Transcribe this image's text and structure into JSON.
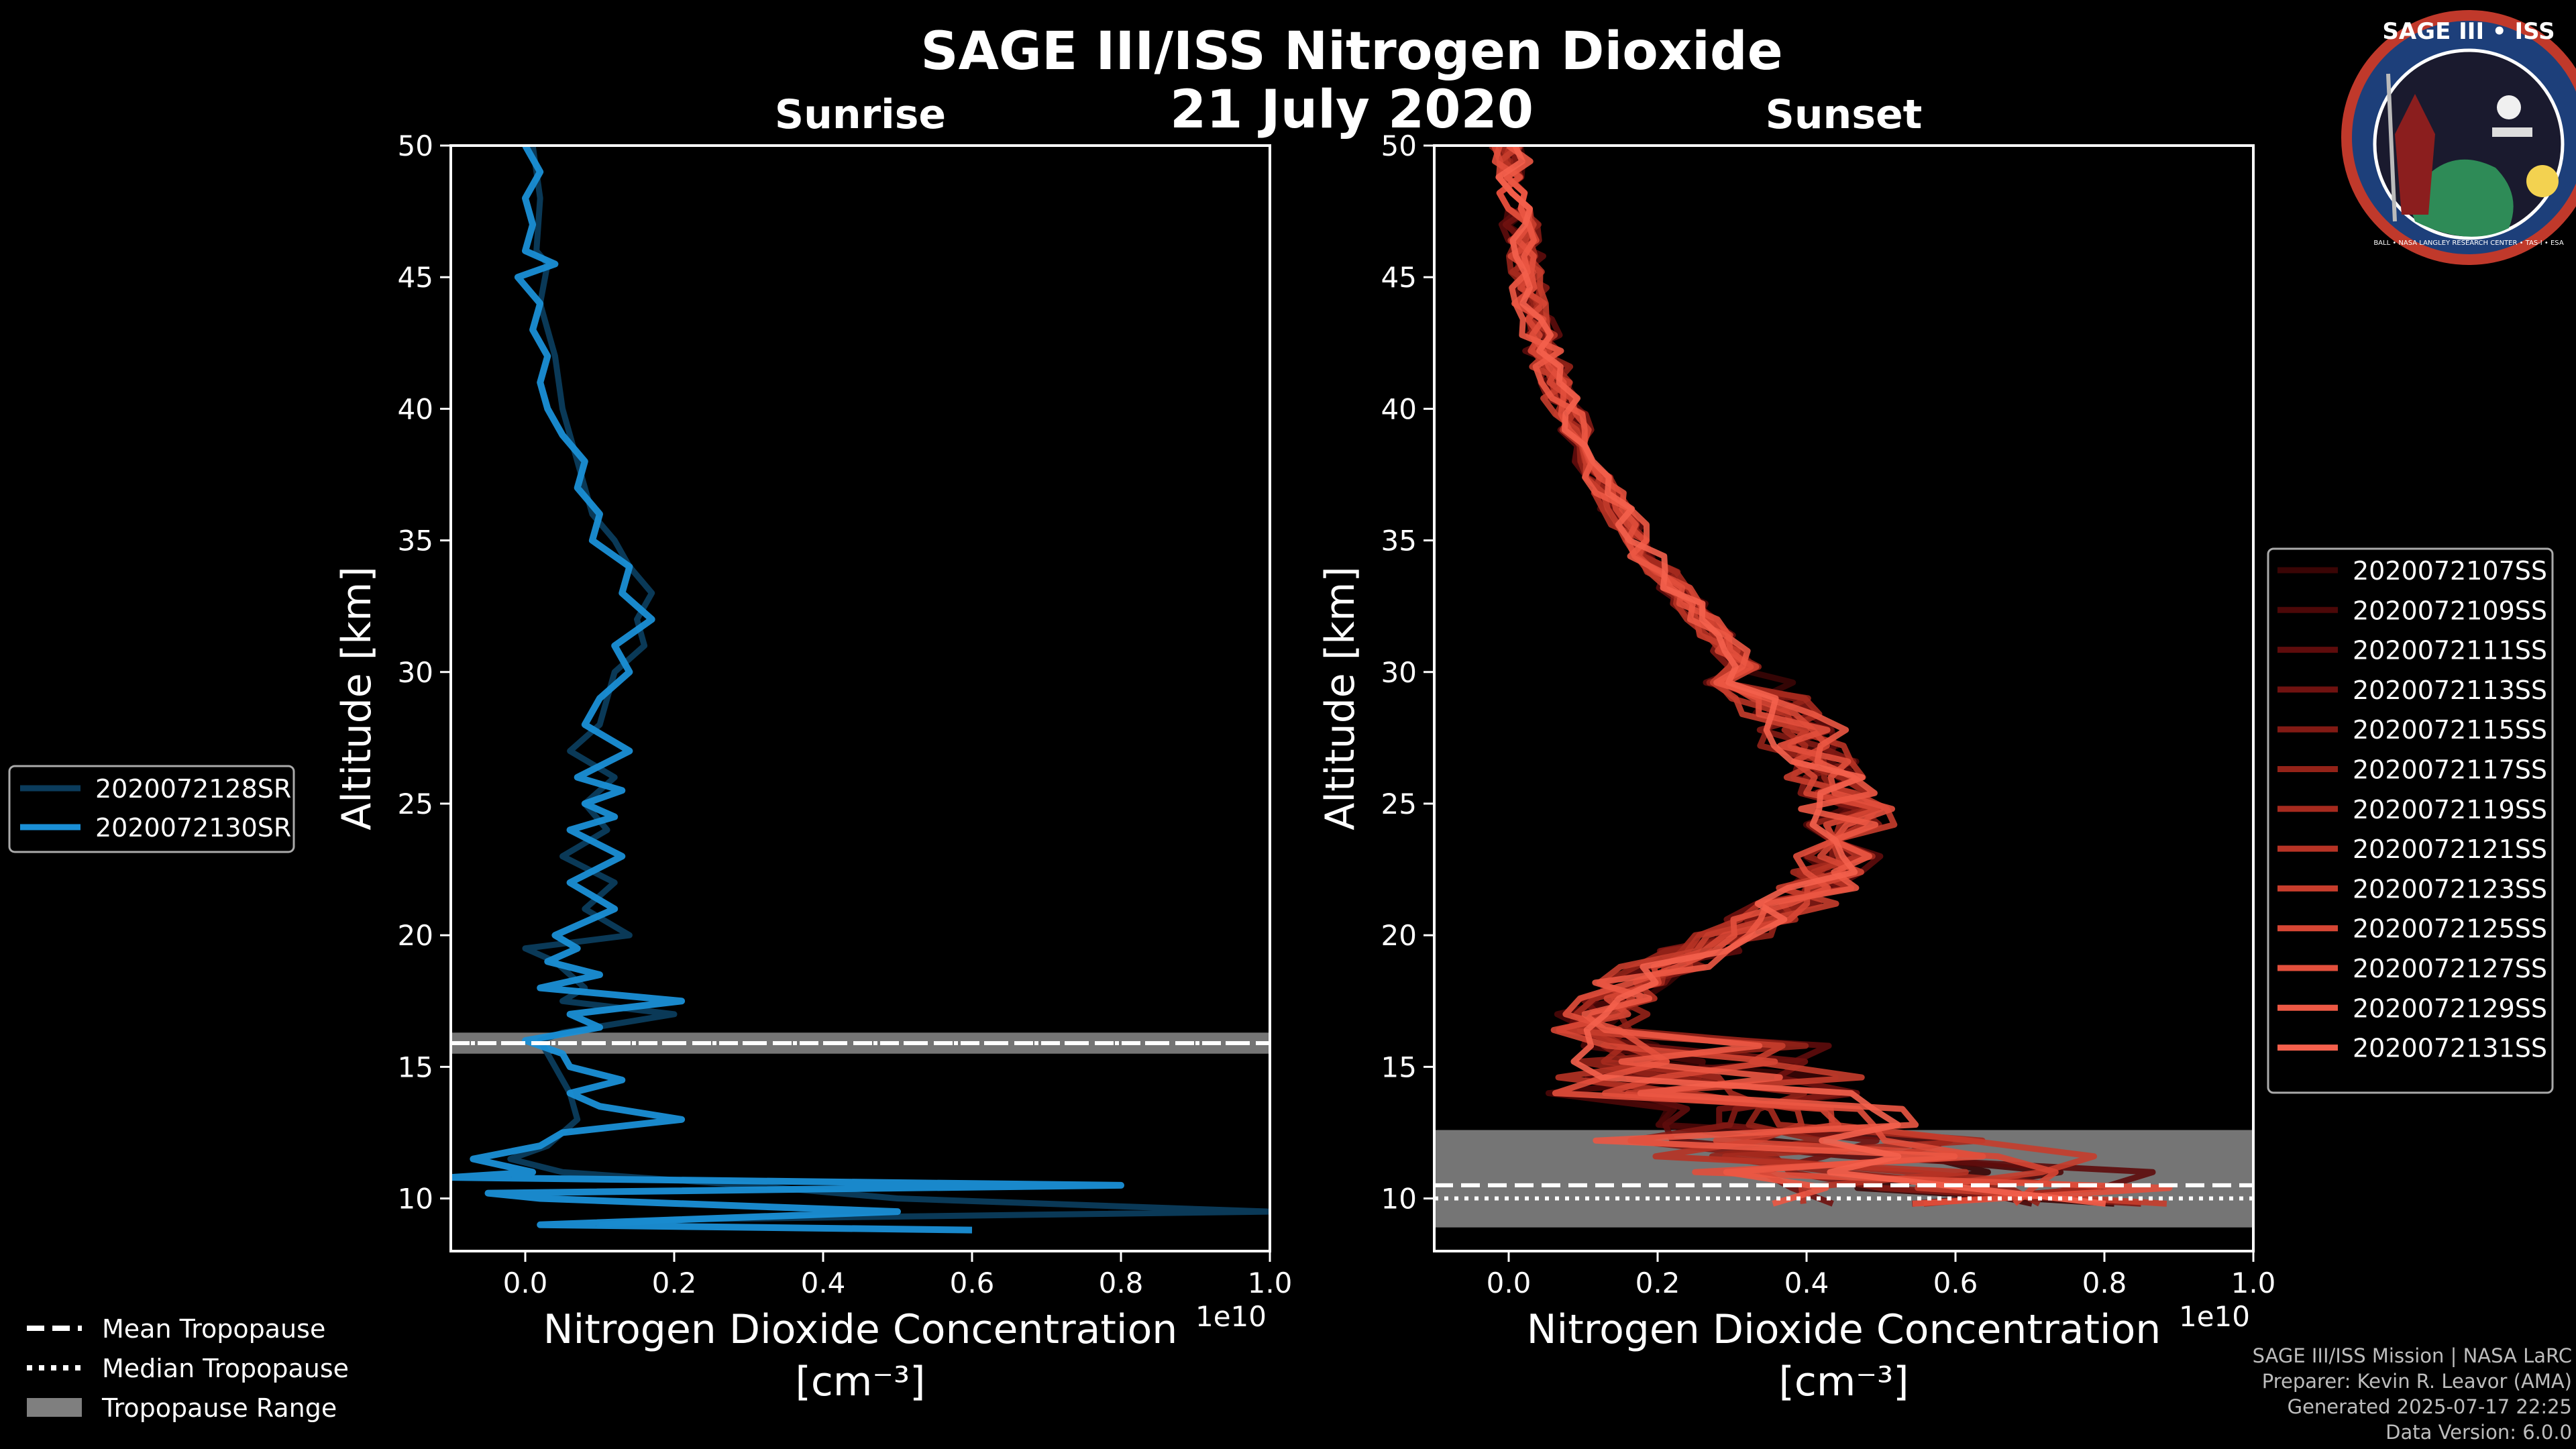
{
  "figure": {
    "title": "SAGE III/ISS Nitrogen Dioxide",
    "date": "21 July 2020",
    "badge_text": "SAGE III • ISS",
    "badge_ring_text": "BALL • NASA LANGLEY RESEARCH CENTER • TAS-I • ESA",
    "footer": [
      "SAGE III/ISS Mission | NASA LaRC",
      "Preparer: Kevin R. Leavor (AMA)",
      "Generated 2025-07-17 22:25",
      "Data Version: 6.0.0"
    ],
    "tropopause_legend": [
      {
        "label": "Mean Tropopause",
        "style": "dashed",
        "color": "#ffffff"
      },
      {
        "label": "Median Tropopause",
        "style": "dotted",
        "color": "#ffffff"
      },
      {
        "label": "Tropopause Range",
        "style": "patch",
        "color": "#7f7f7f"
      }
    ]
  },
  "chart_data": [
    {
      "type": "line",
      "title": "Sunrise",
      "xlabel": "Nitrogen Dioxide Concentration",
      "xunit": "[cm⁻³]",
      "ylabel": "Altitude [km]",
      "xlim": [
        -0.1,
        1.0
      ],
      "ylim": [
        8,
        50
      ],
      "x_scale_label": "1e10",
      "x_scale": 10000000000.0,
      "xticks": [
        0.0,
        0.2,
        0.4,
        0.6,
        0.8,
        1.0
      ],
      "xtick_labels": [
        "0.0",
        "0.2",
        "0.4",
        "0.6",
        "0.8",
        "1.0"
      ],
      "yticks": [
        10,
        15,
        20,
        25,
        30,
        35,
        40,
        45,
        50
      ],
      "ytick_labels": [
        "10",
        "15",
        "20",
        "25",
        "30",
        "35",
        "40",
        "45",
        "50"
      ],
      "tropopause": {
        "mean": 15.9,
        "median": 15.9,
        "range": [
          15.5,
          16.3
        ]
      },
      "series": [
        {
          "name": "2020072128SR",
          "color": "#0b3c5c",
          "altitude": [
            50,
            48,
            46,
            45.5,
            44,
            42,
            40,
            38,
            36,
            35,
            34,
            33,
            32,
            31,
            30,
            28,
            27,
            26,
            25,
            24,
            23,
            22,
            21,
            20,
            19.5,
            19,
            18,
            17.5,
            17,
            16.3,
            16,
            15,
            14,
            13,
            12,
            11.5,
            11,
            10.5,
            10,
            9.8,
            9.5,
            9.2,
            9
          ],
          "values": [
            0.01,
            0.02,
            0.015,
            0.03,
            0.02,
            0.04,
            0.05,
            0.07,
            0.09,
            0.12,
            0.14,
            0.17,
            0.15,
            0.16,
            0.12,
            0.1,
            0.06,
            0.12,
            0.08,
            0.11,
            0.05,
            0.12,
            0.08,
            0.14,
            0.0,
            0.04,
            0.08,
            0.05,
            0.2,
            0.05,
            0.02,
            0.04,
            0.06,
            0.07,
            0.03,
            -0.02,
            0.05,
            0.3,
            0.5,
            0.7,
            1.0,
            0.2,
            0.1
          ]
        },
        {
          "name": "2020072130SR",
          "color": "#1a8fd6",
          "altitude": [
            50,
            49,
            48,
            47,
            46,
            45.5,
            45,
            44,
            43,
            42,
            41,
            40,
            39,
            38,
            37,
            36,
            35,
            34,
            33,
            32,
            31,
            30,
            29,
            28,
            27,
            26,
            25.5,
            25,
            24.5,
            24,
            23,
            22,
            21,
            20,
            19.5,
            19,
            18.5,
            18,
            17.5,
            17,
            16.5,
            16,
            15.5,
            15,
            14.5,
            14,
            13.5,
            13,
            12.5,
            12,
            11.5,
            11,
            10.8,
            10.5,
            10.2,
            10,
            9.5,
            9,
            8.8
          ],
          "values": [
            0.0,
            0.02,
            0.0,
            0.01,
            0.0,
            0.04,
            -0.01,
            0.02,
            0.01,
            0.03,
            0.02,
            0.03,
            0.05,
            0.08,
            0.07,
            0.1,
            0.09,
            0.14,
            0.13,
            0.17,
            0.12,
            0.14,
            0.1,
            0.08,
            0.14,
            0.07,
            0.13,
            0.08,
            0.12,
            0.06,
            0.13,
            0.06,
            0.12,
            0.04,
            0.07,
            0.03,
            0.1,
            0.02,
            0.21,
            0.06,
            0.1,
            0.0,
            0.05,
            0.06,
            0.13,
            0.06,
            0.1,
            0.21,
            0.05,
            0.02,
            -0.07,
            0.01,
            -0.1,
            0.8,
            -0.05,
            0.02,
            0.5,
            0.02,
            0.6
          ]
        }
      ]
    },
    {
      "type": "line",
      "title": "Sunset",
      "xlabel": "Nitrogen Dioxide Concentration",
      "xunit": "[cm⁻³]",
      "ylabel": "Altitude [km]",
      "xlim": [
        -0.1,
        1.0
      ],
      "ylim": [
        8,
        50
      ],
      "x_scale_label": "1e10",
      "x_scale": 10000000000.0,
      "xticks": [
        0.0,
        0.2,
        0.4,
        0.6,
        0.8,
        1.0
      ],
      "xtick_labels": [
        "0.0",
        "0.2",
        "0.4",
        "0.6",
        "0.8",
        "1.0"
      ],
      "yticks": [
        10,
        15,
        20,
        25,
        30,
        35,
        40,
        45,
        50
      ],
      "ytick_labels": [
        "10",
        "15",
        "20",
        "25",
        "30",
        "35",
        "40",
        "45",
        "50"
      ],
      "tropopause": {
        "mean": 10.5,
        "median": 10.0,
        "range": [
          8.9,
          12.6
        ]
      },
      "base_profile": {
        "altitude": [
          50,
          48,
          46,
          44,
          42,
          40,
          38,
          36,
          34,
          32,
          30,
          28,
          26,
          25,
          24,
          23,
          22,
          21,
          20,
          19,
          18,
          17,
          16,
          15,
          14,
          13,
          12,
          11,
          10,
          9.5
        ],
        "values": [
          0.0,
          0.01,
          0.02,
          0.03,
          0.05,
          0.08,
          0.11,
          0.15,
          0.2,
          0.26,
          0.32,
          0.38,
          0.43,
          0.46,
          0.45,
          0.44,
          0.42,
          0.37,
          0.3,
          0.22,
          0.16,
          0.12,
          0.1,
          0.12,
          0.2,
          0.3,
          0.4,
          0.5,
          0.6,
          0.5
        ]
      },
      "series": [
        {
          "name": "2020072107SS",
          "color": "#3a0505"
        },
        {
          "name": "2020072109SS",
          "color": "#4c0808"
        },
        {
          "name": "2020072111SS",
          "color": "#5e0c0c"
        },
        {
          "name": "2020072113SS",
          "color": "#701210"
        },
        {
          "name": "2020072115SS",
          "color": "#821a14"
        },
        {
          "name": "2020072117SS",
          "color": "#942218"
        },
        {
          "name": "2020072119SS",
          "color": "#a62a1e"
        },
        {
          "name": "2020072121SS",
          "color": "#b73325"
        },
        {
          "name": "2020072123SS",
          "color": "#c73d2c"
        },
        {
          "name": "2020072125SS",
          "color": "#d64634"
        },
        {
          "name": "2020072127SS",
          "color": "#e24f3c"
        },
        {
          "name": "2020072129SS",
          "color": "#ec5844"
        },
        {
          "name": "2020072131SS",
          "color": "#f4604c"
        }
      ]
    }
  ]
}
